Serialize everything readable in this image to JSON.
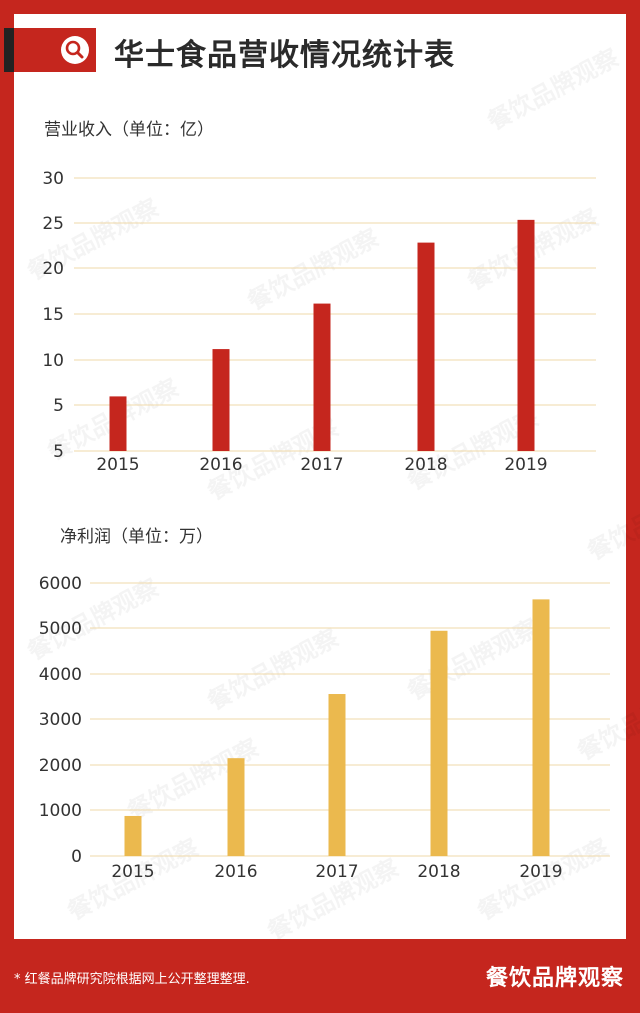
{
  "header": {
    "title": "华士食品营收情况统计表"
  },
  "chart_data": [
    {
      "type": "bar",
      "title": "",
      "ylabel": "营业收入（单位：亿）",
      "categories": [
        "2015",
        "2016",
        "2017",
        "2018",
        "2019"
      ],
      "values": [
        6,
        11.2,
        16.2,
        22.9,
        25.4
      ],
      "y_tick_labels": [
        "5",
        "5",
        "10",
        "15",
        "20",
        "25",
        "30"
      ],
      "ylim": [
        0,
        30
      ],
      "grid": true,
      "bar_color": "#c5261e"
    },
    {
      "type": "bar",
      "title": "",
      "ylabel": "净利润（单位：万）",
      "categories": [
        "2015",
        "2016",
        "2017",
        "2018",
        "2019"
      ],
      "values": [
        880,
        2150,
        3560,
        4950,
        5640
      ],
      "y_tick_labels": [
        "0",
        "1000",
        "2000",
        "3000",
        "4000",
        "5000",
        "6000"
      ],
      "ylim": [
        0,
        6000
      ],
      "grid": true,
      "bar_color": "#ebb94e"
    }
  ],
  "footer": {
    "source": "* 红餐品牌研究院根据网上公开整理整理.",
    "brand": "餐饮品牌观察"
  },
  "watermark": {
    "text": "餐饮品牌观察"
  }
}
